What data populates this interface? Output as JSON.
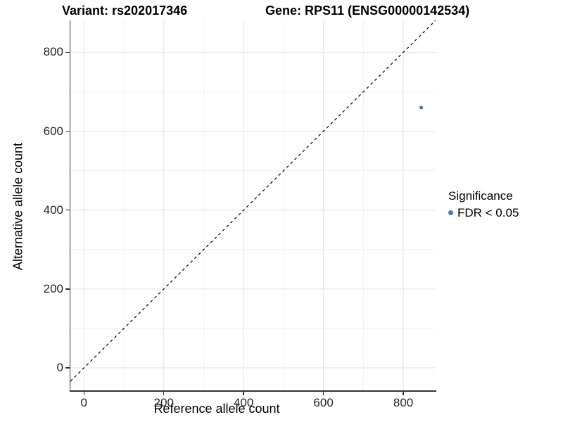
{
  "chart_data": {
    "type": "scatter",
    "title_left": "Variant: rs202017346",
    "title_right": "Gene: RPS11 (ENSG00000142534)",
    "xlabel": "Reference allele count",
    "ylabel": "Alternative allele count",
    "x_ticks": [
      0,
      200,
      400,
      600,
      800
    ],
    "y_ticks": [
      0,
      200,
      400,
      600,
      800
    ],
    "x_minor": [
      100,
      300,
      500,
      700
    ],
    "y_minor": [
      100,
      300,
      500,
      700
    ],
    "x_range": [
      -34,
      881
    ],
    "y_range": [
      -57,
      881
    ],
    "points": [
      {
        "x": 845,
        "y": 660,
        "series": "FDR < 0.05"
      }
    ],
    "identity_line": {
      "style": "dashed",
      "color": "#111111"
    },
    "legend": {
      "title": "Significance",
      "position": "right",
      "items": [
        {
          "label": "FDR < 0.05",
          "color": "#4e79a7"
        }
      ]
    },
    "point_color": "#4e79a7",
    "grid": {
      "major_color": "#e8e8e8",
      "minor_color": "#f3f3f3",
      "background": "#ffffff"
    },
    "axis_line_color": "#333333"
  }
}
